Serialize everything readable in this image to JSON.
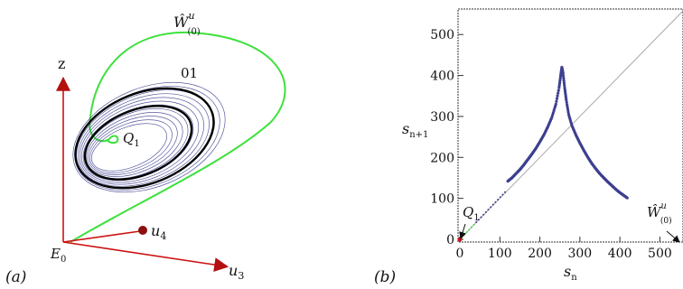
{
  "panel_a": {
    "label": "(a)",
    "axes": {
      "z": "z",
      "u3": "u",
      "u3_sub": "3",
      "u4": "u",
      "u4_sub": "4",
      "origin": "E",
      "origin_sub": "0"
    },
    "manifold": {
      "main": "Ŵ",
      "sup": "u",
      "sub": "(0)"
    },
    "orbit_label": "01",
    "point": {
      "main": "Q",
      "sub": "1"
    },
    "colors": {
      "attractor": "#3d3f8f",
      "orbit": "#000000",
      "manifold": "#3ce13c",
      "axis": "#cc1111"
    }
  },
  "panel_b": {
    "label": "(b)",
    "xlabel": {
      "main": "s",
      "sub": "n"
    },
    "ylabel": {
      "main": "s",
      "sub": "n+1"
    },
    "manifold": {
      "main": "Ŵ",
      "sup": "u",
      "sub": "(0)"
    },
    "point": {
      "main": "Q",
      "sub": "1"
    },
    "colors": {
      "map": "#3d3f8f",
      "diagonal": "#aaaaaa"
    }
  },
  "chart_data": {
    "type": "scatter",
    "xlabel": "s_n",
    "ylabel": "s_n+1",
    "xlim": [
      0,
      560
    ],
    "ylim": [
      0,
      560
    ],
    "xticks": [
      0,
      100,
      200,
      300,
      400,
      500
    ],
    "yticks": [
      0,
      100,
      200,
      300,
      400,
      500
    ],
    "series": [
      {
        "x": [
          120,
          130,
          140,
          150,
          160,
          170,
          180,
          190,
          200,
          210,
          220,
          230,
          240,
          248,
          252,
          255,
          258,
          262,
          266,
          272,
          280,
          290,
          300,
          310,
          320,
          330,
          340,
          350,
          360,
          370,
          380,
          390,
          400,
          410,
          420
        ],
        "y": [
          142,
          150,
          160,
          170,
          182,
          195,
          208,
          222,
          238,
          255,
          275,
          298,
          330,
          370,
          400,
          420,
          405,
          370,
          340,
          305,
          278,
          255,
          235,
          217,
          200,
          185,
          172,
          160,
          150,
          140,
          131,
          122,
          114,
          107,
          100
        ]
      }
    ],
    "diagonal": [
      [
        0,
        0
      ],
      [
        560,
        560
      ]
    ],
    "fixed_point": {
      "x": 0,
      "y": 0
    }
  }
}
